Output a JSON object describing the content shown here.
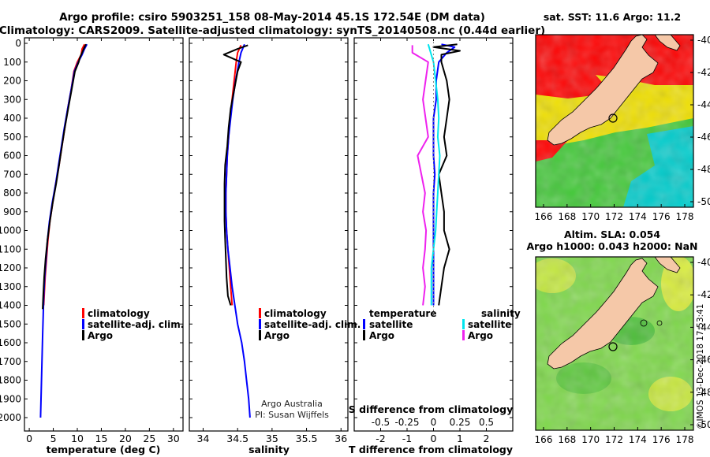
{
  "header": {
    "line1": "Argo profile: csiro 5903251_158 08-May-2014 45.1S 172.54E (DM data)",
    "line2": "Climatology: CARS2009. Satellite-adjusted climatology: synTS_20140508.nc (0.44d earlier)"
  },
  "colors": {
    "climatology": "#ff0000",
    "satellite": "#0000ff",
    "argo": "#000000",
    "sat_salinity": "#00e5ee",
    "argo_salinity": "#ee22ee"
  },
  "chart_data": [
    {
      "type": "line",
      "id": "temperature",
      "xlabel": "temperature (deg C)",
      "xlim": [
        -1,
        32
      ],
      "xticks": [
        0,
        5,
        10,
        15,
        20,
        25,
        30
      ],
      "ylim": [
        0,
        2050
      ],
      "yticks": [
        0,
        100,
        200,
        300,
        400,
        500,
        600,
        700,
        800,
        900,
        1000,
        1100,
        1200,
        1300,
        1400,
        1500,
        1600,
        1700,
        1800,
        1900,
        2000
      ],
      "legend": [
        "climatology",
        "satellite-adj. clim.",
        "Argo"
      ],
      "series": [
        {
          "name": "climatology",
          "points": [
            [
              11.5,
              5
            ],
            [
              11.0,
              30
            ],
            [
              10.8,
              60
            ],
            [
              10.0,
              100
            ],
            [
              9.3,
              150
            ],
            [
              8.7,
              250
            ],
            [
              8.0,
              350
            ],
            [
              7.4,
              450
            ],
            [
              6.8,
              550
            ],
            [
              6.2,
              650
            ],
            [
              5.5,
              750
            ],
            [
              4.9,
              850
            ],
            [
              4.3,
              950
            ],
            [
              3.9,
              1050
            ],
            [
              3.6,
              1150
            ],
            [
              3.3,
              1250
            ],
            [
              3.1,
              1350
            ],
            [
              3.0,
              1400
            ]
          ]
        },
        {
          "name": "satellite-adj. clim.",
          "points": [
            [
              12.0,
              5
            ],
            [
              11.5,
              30
            ],
            [
              11.0,
              60
            ],
            [
              10.2,
              100
            ],
            [
              9.4,
              150
            ],
            [
              8.7,
              250
            ],
            [
              8.0,
              350
            ],
            [
              7.3,
              450
            ],
            [
              6.7,
              550
            ],
            [
              6.1,
              650
            ],
            [
              5.5,
              750
            ],
            [
              4.8,
              850
            ],
            [
              4.2,
              950
            ],
            [
              3.8,
              1050
            ],
            [
              3.5,
              1150
            ],
            [
              3.2,
              1250
            ],
            [
              3.0,
              1350
            ],
            [
              2.9,
              1450
            ],
            [
              2.8,
              1550
            ],
            [
              2.7,
              1650
            ],
            [
              2.6,
              1750
            ],
            [
              2.5,
              1850
            ],
            [
              2.4,
              1950
            ],
            [
              2.35,
              2000
            ]
          ]
        },
        {
          "name": "Argo",
          "points": [
            [
              11.8,
              5
            ],
            [
              11.5,
              20
            ],
            [
              11.0,
              50
            ],
            [
              10.5,
              80
            ],
            [
              10.3,
              100
            ],
            [
              9.5,
              150
            ],
            [
              8.8,
              250
            ],
            [
              8.1,
              350
            ],
            [
              7.4,
              450
            ],
            [
              6.8,
              550
            ],
            [
              6.2,
              650
            ],
            [
              5.6,
              750
            ],
            [
              4.9,
              850
            ],
            [
              4.3,
              950
            ],
            [
              3.8,
              1050
            ],
            [
              3.4,
              1150
            ],
            [
              3.1,
              1250
            ],
            [
              2.9,
              1350
            ],
            [
              2.8,
              1420
            ]
          ]
        }
      ]
    },
    {
      "type": "line",
      "id": "salinity",
      "xlabel": "salinity",
      "xlim": [
        33.8,
        36.1
      ],
      "xticks": [
        34,
        34.5,
        35,
        35.5,
        36
      ],
      "ylim": [
        0,
        2050
      ],
      "legend": [
        "climatology",
        "satellite-adj. clim.",
        "Argo"
      ],
      "series": [
        {
          "name": "climatology",
          "points": [
            [
              34.55,
              10
            ],
            [
              34.5,
              50
            ],
            [
              34.48,
              100
            ],
            [
              34.45,
              200
            ],
            [
              34.42,
              300
            ],
            [
              34.39,
              400
            ],
            [
              34.37,
              500
            ],
            [
              34.35,
              600
            ],
            [
              34.34,
              700
            ],
            [
              34.33,
              800
            ],
            [
              34.33,
              900
            ],
            [
              34.34,
              1000
            ],
            [
              34.36,
              1100
            ],
            [
              34.38,
              1200
            ],
            [
              34.4,
              1300
            ],
            [
              34.42,
              1400
            ]
          ]
        },
        {
          "name": "satellite-adj. clim.",
          "points": [
            [
              34.6,
              5
            ],
            [
              34.55,
              50
            ],
            [
              34.52,
              100
            ],
            [
              34.47,
              200
            ],
            [
              34.43,
              300
            ],
            [
              34.4,
              400
            ],
            [
              34.37,
              500
            ],
            [
              34.35,
              600
            ],
            [
              34.34,
              700
            ],
            [
              34.33,
              800
            ],
            [
              34.33,
              900
            ],
            [
              34.34,
              1000
            ],
            [
              34.36,
              1100
            ],
            [
              34.39,
              1200
            ],
            [
              34.42,
              1300
            ],
            [
              34.46,
              1400
            ],
            [
              34.5,
              1500
            ],
            [
              34.56,
              1600
            ],
            [
              34.6,
              1700
            ],
            [
              34.63,
              1800
            ],
            [
              34.66,
              1900
            ],
            [
              34.68,
              2000
            ]
          ]
        },
        {
          "name": "Argo",
          "points": [
            [
              34.65,
              10
            ],
            [
              34.5,
              30
            ],
            [
              34.3,
              60
            ],
            [
              34.55,
              100
            ],
            [
              34.5,
              150
            ],
            [
              34.45,
              250
            ],
            [
              34.4,
              350
            ],
            [
              34.37,
              450
            ],
            [
              34.35,
              550
            ],
            [
              34.32,
              650
            ],
            [
              34.31,
              750
            ],
            [
              34.31,
              850
            ],
            [
              34.31,
              950
            ],
            [
              34.32,
              1050
            ],
            [
              34.33,
              1150
            ],
            [
              34.34,
              1250
            ],
            [
              34.36,
              1350
            ],
            [
              34.4,
              1400
            ]
          ]
        }
      ],
      "annotations": [
        "Argo Australia",
        "PI: Susan Wijffels"
      ]
    },
    {
      "type": "line",
      "id": "difference",
      "xlabel": "T difference from climatology",
      "xlim": [
        -3,
        3
      ],
      "xticks": [
        -2,
        -1,
        0,
        1,
        2
      ],
      "x2label": "S difference from climatology",
      "x2ticks": [
        "-0.5",
        "-0.25",
        "0",
        "0.25",
        "0.5"
      ],
      "ylim": [
        0,
        2050
      ],
      "legend_left_title": "temperature",
      "legend_right_title": "salinity",
      "legend": [
        "satellite",
        "Argo",
        "satellite",
        "Argo"
      ],
      "series": [
        {
          "name": "T satellite",
          "points": [
            [
              0.3,
              5
            ],
            [
              0.8,
              20
            ],
            [
              0.5,
              50
            ],
            [
              0.2,
              100
            ],
            [
              0.1,
              200
            ],
            [
              0.1,
              300
            ],
            [
              0.0,
              400
            ],
            [
              0.0,
              500
            ],
            [
              0.0,
              600
            ],
            [
              0.05,
              700
            ],
            [
              0.0,
              800
            ],
            [
              0.0,
              900
            ],
            [
              0.0,
              1000
            ],
            [
              0.0,
              1100
            ],
            [
              0.0,
              1200
            ],
            [
              0.0,
              1300
            ],
            [
              0.0,
              1400
            ]
          ]
        },
        {
          "name": "T Argo",
          "points": [
            [
              0.9,
              5
            ],
            [
              0.0,
              20
            ],
            [
              1.0,
              40
            ],
            [
              0.3,
              60
            ],
            [
              0.3,
              100
            ],
            [
              0.5,
              200
            ],
            [
              0.6,
              300
            ],
            [
              0.5,
              400
            ],
            [
              0.4,
              500
            ],
            [
              0.5,
              600
            ],
            [
              0.2,
              700
            ],
            [
              0.3,
              800
            ],
            [
              0.4,
              900
            ],
            [
              0.4,
              1000
            ],
            [
              0.6,
              1100
            ],
            [
              0.4,
              1200
            ],
            [
              0.3,
              1300
            ],
            [
              0.2,
              1400
            ]
          ]
        },
        {
          "name": "S satellite",
          "points": [
            [
              -0.05,
              5
            ],
            [
              0.0,
              100
            ],
            [
              0.02,
              200
            ],
            [
              0.04,
              300
            ],
            [
              0.05,
              400
            ],
            [
              0.04,
              500
            ],
            [
              0.06,
              600
            ],
            [
              0.05,
              700
            ],
            [
              0.04,
              800
            ],
            [
              0.03,
              900
            ],
            [
              0.02,
              1000
            ],
            [
              0.0,
              1100
            ],
            [
              -0.02,
              1200
            ],
            [
              -0.02,
              1300
            ],
            [
              -0.02,
              1400
            ]
          ]
        },
        {
          "name": "S Argo",
          "points": [
            [
              -0.2,
              10
            ],
            [
              -0.2,
              50
            ],
            [
              -0.05,
              100
            ],
            [
              -0.1,
              300
            ],
            [
              -0.05,
              500
            ],
            [
              -0.15,
              600
            ],
            [
              -0.08,
              800
            ],
            [
              -0.1,
              900
            ],
            [
              -0.07,
              1000
            ],
            [
              -0.08,
              1100
            ],
            [
              -0.1,
              1200
            ],
            [
              -0.08,
              1300
            ],
            [
              -0.1,
              1400
            ]
          ]
        }
      ]
    }
  ],
  "maps": {
    "sst": {
      "title": "sat. SST: 11.6  Argo: 11.2",
      "lat_ticks": [
        "-40",
        "-42",
        "-44",
        "-46",
        "-48",
        "-50"
      ],
      "lon_ticks": [
        "166",
        "168",
        "170",
        "172",
        "174",
        "176",
        "178"
      ]
    },
    "sla": {
      "title1": "Altim. SLA: 0.054",
      "title2": "Argo h1000: 0.043 h2000: NaN",
      "lat_ticks": [
        "-40",
        "-42",
        "-44",
        "-46",
        "-48",
        "-50"
      ],
      "lon_ticks": [
        "166",
        "168",
        "170",
        "172",
        "174",
        "176",
        "178"
      ]
    }
  },
  "footer": {
    "credit": "©IMOS 13-Dec-2018 17:53:41"
  }
}
